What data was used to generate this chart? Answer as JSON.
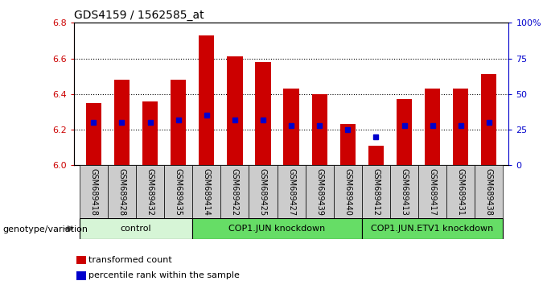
{
  "title": "GDS4159 / 1562585_at",
  "samples": [
    "GSM689418",
    "GSM689428",
    "GSM689432",
    "GSM689435",
    "GSM689414",
    "GSM689422",
    "GSM689425",
    "GSM689427",
    "GSM689439",
    "GSM689440",
    "GSM689412",
    "GSM689413",
    "GSM689417",
    "GSM689431",
    "GSM689438"
  ],
  "transformed_count": [
    6.35,
    6.48,
    6.36,
    6.48,
    6.73,
    6.61,
    6.58,
    6.43,
    6.4,
    6.23,
    6.11,
    6.37,
    6.43,
    6.43,
    6.51
  ],
  "percentile_rank": [
    30,
    30,
    30,
    32,
    35,
    32,
    32,
    28,
    28,
    25,
    20,
    28,
    28,
    28,
    30
  ],
  "groups": [
    {
      "label": "control",
      "start": 0,
      "end": 4,
      "color": "#d6f5d6"
    },
    {
      "label": "COP1.JUN knockdown",
      "start": 4,
      "end": 10,
      "color": "#66dd66"
    },
    {
      "label": "COP1.JUN.ETV1 knockdown",
      "start": 10,
      "end": 15,
      "color": "#66dd66"
    }
  ],
  "ylim": [
    6.0,
    6.8
  ],
  "yticks": [
    6.0,
    6.2,
    6.4,
    6.6,
    6.8
  ],
  "y2lim": [
    0,
    100
  ],
  "y2ticks": [
    0,
    25,
    50,
    75,
    100
  ],
  "y2ticklabels": [
    "0",
    "25",
    "50",
    "75",
    "100%"
  ],
  "bar_color": "#cc0000",
  "dot_color": "#0000cc",
  "bar_width": 0.55,
  "base_value": 6.0,
  "bg_color": "#ffffff",
  "xtick_bg": "#cccccc",
  "legend_items": [
    {
      "color": "#cc0000",
      "label": "transformed count"
    },
    {
      "color": "#0000cc",
      "label": "percentile rank within the sample"
    }
  ],
  "genotype_label": "genotype/variation",
  "grid_color": "#000000"
}
